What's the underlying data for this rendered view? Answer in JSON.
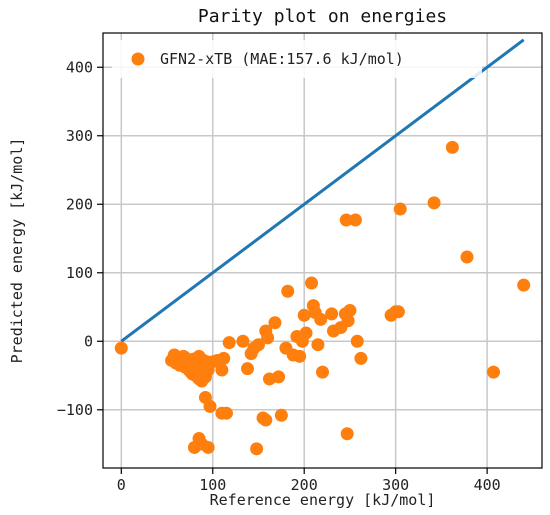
{
  "chart_data": {
    "type": "scatter",
    "title": "Parity plot on energies",
    "xlabel": "Reference energy [kJ/mol]",
    "ylabel": "Predicted energy [kJ/mol]",
    "xlim": [
      -20,
      460
    ],
    "ylim": [
      -185,
      450
    ],
    "xticks": [
      0,
      100,
      200,
      300,
      400
    ],
    "yticks": [
      -100,
      0,
      100,
      200,
      300,
      400
    ],
    "grid": true,
    "legend_position": "top-left",
    "colors": {
      "points": "#ff7f0e",
      "parity_line": "#1f77b4"
    },
    "parity_line": {
      "x": [
        0,
        440
      ],
      "y": [
        0,
        440
      ]
    },
    "series": [
      {
        "name": "GFN2-xTB (MAE:157.6 kJ/mol)",
        "points": [
          [
            0,
            -10
          ],
          [
            55,
            -28
          ],
          [
            58,
            -20
          ],
          [
            60,
            -32
          ],
          [
            62,
            -25
          ],
          [
            64,
            -35
          ],
          [
            66,
            -28
          ],
          [
            68,
            -22
          ],
          [
            70,
            -38
          ],
          [
            72,
            -30
          ],
          [
            74,
            -40
          ],
          [
            75,
            -33
          ],
          [
            76,
            -45
          ],
          [
            78,
            -36
          ],
          [
            79,
            -26
          ],
          [
            80,
            -42
          ],
          [
            81,
            -50
          ],
          [
            82,
            -30
          ],
          [
            83,
            -38
          ],
          [
            84,
            -46
          ],
          [
            85,
            -55
          ],
          [
            86,
            -32
          ],
          [
            87,
            -40
          ],
          [
            88,
            -48
          ],
          [
            89,
            -36
          ],
          [
            90,
            -28
          ],
          [
            91,
            -44
          ],
          [
            92,
            -52
          ],
          [
            93,
            -38
          ],
          [
            94,
            -30
          ],
          [
            95,
            -42
          ],
          [
            78,
            -48
          ],
          [
            85,
            -22
          ],
          [
            88,
            -58
          ],
          [
            70,
            -24
          ],
          [
            74,
            -42
          ],
          [
            92,
            -30
          ],
          [
            100,
            -30
          ],
          [
            105,
            -28
          ],
          [
            110,
            -42
          ],
          [
            112,
            -25
          ],
          [
            118,
            -2
          ],
          [
            92,
            -82
          ],
          [
            97,
            -95
          ],
          [
            110,
            -105
          ],
          [
            115,
            -105
          ],
          [
            80,
            -155
          ],
          [
            85,
            -142
          ],
          [
            88,
            -150
          ],
          [
            95,
            -155
          ],
          [
            148,
            -157
          ],
          [
            133,
            0
          ],
          [
            138,
            -40
          ],
          [
            142,
            -18
          ],
          [
            145,
            -10
          ],
          [
            150,
            -5
          ],
          [
            158,
            15
          ],
          [
            160,
            5
          ],
          [
            162,
            -55
          ],
          [
            168,
            27
          ],
          [
            172,
            -52
          ],
          [
            175,
            -108
          ],
          [
            155,
            -112
          ],
          [
            158,
            -115
          ],
          [
            182,
            73
          ],
          [
            180,
            -10
          ],
          [
            188,
            -20
          ],
          [
            192,
            7
          ],
          [
            195,
            -22
          ],
          [
            198,
            0
          ],
          [
            200,
            38
          ],
          [
            202,
            12
          ],
          [
            208,
            85
          ],
          [
            210,
            52
          ],
          [
            212,
            42
          ],
          [
            215,
            -5
          ],
          [
            218,
            32
          ],
          [
            220,
            -45
          ],
          [
            230,
            40
          ],
          [
            232,
            15
          ],
          [
            240,
            20
          ],
          [
            245,
            40
          ],
          [
            248,
            30
          ],
          [
            250,
            45
          ],
          [
            246,
            177
          ],
          [
            256,
            177
          ],
          [
            258,
            0
          ],
          [
            262,
            -25
          ],
          [
            247,
            -135
          ],
          [
            295,
            38
          ],
          [
            300,
            43
          ],
          [
            303,
            43
          ],
          [
            305,
            193
          ],
          [
            342,
            202
          ],
          [
            362,
            283
          ],
          [
            378,
            123
          ],
          [
            407,
            -45
          ],
          [
            440,
            82
          ]
        ]
      }
    ]
  }
}
